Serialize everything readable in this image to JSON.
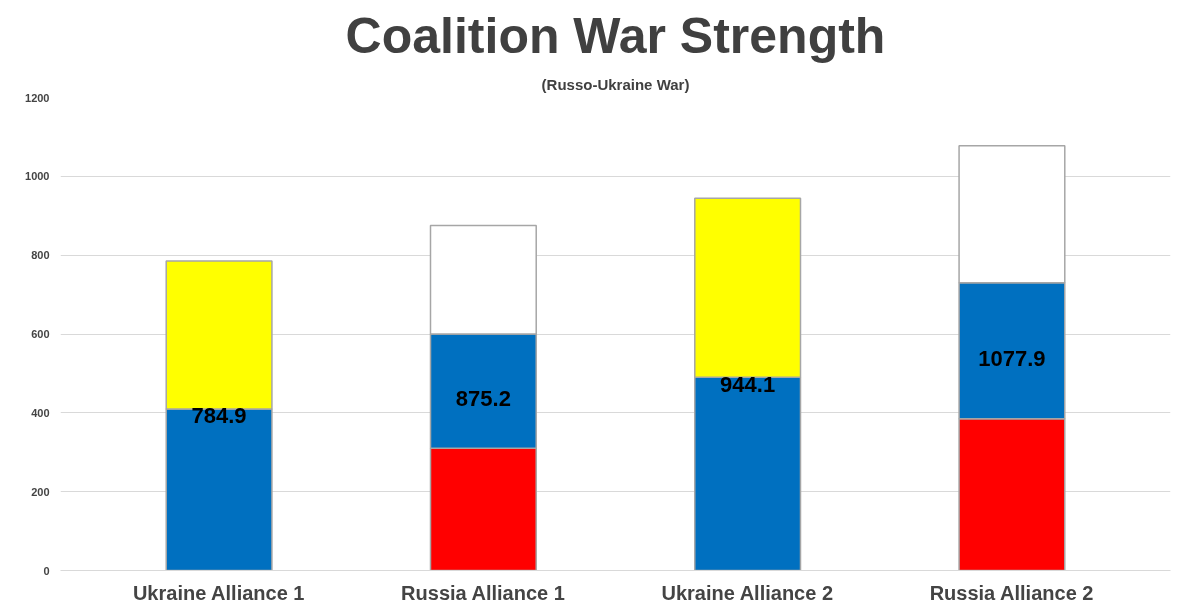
{
  "chart_data": {
    "type": "bar",
    "title": "Coalition War Strength",
    "subtitle": "(Russo-Ukraine War)",
    "categories": [
      "Ukraine Alliance 1",
      "Russia Alliance 1",
      "Ukraine Alliance 2",
      "Russia Alliance 2"
    ],
    "stacked": true,
    "series": [
      {
        "colors": [
          "#0070c0",
          "#ff0000",
          "#0070c0",
          "#ff0000"
        ],
        "values": [
          410,
          310,
          490,
          385
        ]
      },
      {
        "colors": [
          "#ffff00",
          "#0070c0",
          "#ffff00",
          "#0070c0"
        ],
        "values": [
          374.9,
          290,
          454.1,
          345
        ]
      },
      {
        "colors": [
          "#ffffff",
          "#ffffff",
          "#ffffff",
          "#ffffff"
        ],
        "values": [
          null,
          275.2,
          null,
          347.9
        ]
      }
    ],
    "totals": [
      "784.9",
      "875.2",
      "944.1",
      "1077.9"
    ],
    "ylim": [
      0,
      1200
    ],
    "yticks": [
      0,
      200,
      400,
      600,
      800,
      1000,
      1200
    ],
    "grid": "y"
  }
}
